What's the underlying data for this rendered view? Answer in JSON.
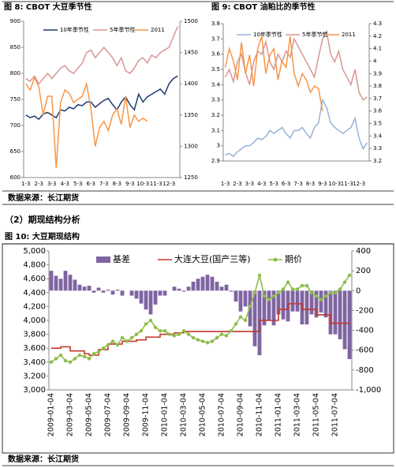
{
  "chart_data": [
    {
      "type": "line",
      "title": "图 8: CBOT 大豆季节性",
      "categories": [
        "1-3",
        null,
        null,
        "2-3",
        null,
        null,
        "3-3",
        null,
        null,
        "4-3",
        null,
        null,
        "5-3",
        null,
        null,
        "6-3",
        null,
        null,
        "7-3",
        null,
        null,
        "8-3",
        null,
        null,
        "9-3",
        null,
        null,
        "10-3",
        null,
        null,
        "11-3",
        null,
        null,
        "12-3",
        null,
        null
      ],
      "ylim": [
        600,
        900
      ],
      "yticks": [
        600,
        650,
        700,
        750,
        800,
        850,
        900
      ],
      "y2lim": [
        1250,
        1500
      ],
      "y2ticks": [
        1250,
        1300,
        1350,
        1400,
        1450,
        1500
      ],
      "series": [
        {
          "name": "10年季节性",
          "color": "#1f3a6e",
          "values": [
            720,
            715,
            718,
            712,
            722,
            725,
            720,
            715,
            730,
            728,
            735,
            732,
            740,
            738,
            745,
            745,
            735,
            742,
            748,
            752,
            740,
            730,
            745,
            755,
            740,
            730,
            760,
            745,
            755,
            760,
            765,
            770,
            760,
            780,
            790,
            795
          ]
        },
        {
          "name": "5年季节性",
          "color": "#d99694",
          "values": [
            790,
            785,
            795,
            780,
            790,
            800,
            790,
            800,
            810,
            815,
            805,
            800,
            810,
            820,
            840,
            845,
            830,
            840,
            850,
            840,
            830,
            815,
            830,
            805,
            800,
            810,
            825,
            830,
            820,
            835,
            830,
            840,
            845,
            850,
            870,
            890
          ]
        },
        {
          "name": "2011",
          "color": "#f79646",
          "axis": "y2",
          "values": [
            1400,
            1390,
            1410,
            1395,
            1350,
            1380,
            1380,
            1265,
            1370,
            1390,
            1385,
            1370,
            1375,
            1380,
            1400,
            1360,
            1300,
            1330,
            1340,
            1325,
            1350,
            1360,
            1335,
            1380,
            1330,
            1350,
            1340,
            1345,
            1340,
            null,
            null,
            null,
            null,
            null,
            null,
            null
          ]
        }
      ]
    },
    {
      "type": "line",
      "title": "图 9: CBOT 油粕比的季节性",
      "categories": [
        "1-3",
        null,
        null,
        "2-3",
        null,
        null,
        "3-3",
        null,
        null,
        "4-3",
        null,
        null,
        "5-3",
        null,
        null,
        "6-3",
        null,
        null,
        "7-3",
        null,
        null,
        "8-3",
        null,
        null,
        "9-3",
        null,
        null,
        "10-3",
        null,
        null,
        "11-3",
        null,
        null,
        "12-3",
        null,
        null
      ],
      "ylim": [
        2.9,
        3.8
      ],
      "yticks": [
        2.9,
        3,
        3.1,
        3.2,
        3.3,
        3.4,
        3.5,
        3.6,
        3.7,
        3.8
      ],
      "y2lim": [
        3.2,
        4.3
      ],
      "y2ticks": [
        3.2,
        3.3,
        3.4,
        3.5,
        3.6,
        3.7,
        3.8,
        3.9,
        4,
        4.1,
        4.2,
        4.3
      ],
      "series": [
        {
          "name": "10年季节性",
          "color": "#95b3d7",
          "values": [
            2.94,
            2.95,
            2.93,
            2.96,
            2.98,
            3.0,
            3.0,
            3.02,
            3.05,
            3.04,
            3.06,
            3.1,
            3.08,
            3.1,
            3.12,
            3.08,
            3.05,
            3.1,
            3.1,
            3.12,
            3.08,
            3.05,
            3.12,
            3.15,
            3.3,
            3.25,
            3.15,
            3.12,
            3.1,
            3.08,
            3.1,
            3.12,
            3.18,
            3.05,
            2.98,
            3.02
          ]
        },
        {
          "name": "5年季节性",
          "color": "#d99694",
          "values": [
            3.45,
            3.5,
            3.42,
            3.55,
            3.6,
            3.48,
            3.4,
            3.55,
            3.62,
            3.6,
            3.68,
            3.55,
            3.5,
            3.6,
            3.55,
            3.62,
            3.58,
            3.7,
            3.65,
            3.6,
            3.55,
            3.5,
            3.45,
            3.58,
            3.7,
            3.75,
            3.6,
            3.55,
            3.62,
            3.5,
            3.45,
            3.4,
            3.5,
            3.35,
            3.3,
            3.32
          ]
        },
        {
          "name": "2011",
          "color": "#f79646",
          "axis": "y2",
          "values": [
            3.95,
            4.1,
            4.0,
            3.85,
            4.15,
            3.9,
            4.05,
            3.8,
            4.1,
            4.2,
            3.9,
            4.05,
            4.1,
            3.85,
            4.0,
            3.95,
            4.2,
            3.9,
            3.8,
            3.9,
            3.85,
            3.75,
            3.8,
            3.78,
            3.6,
            null,
            null,
            null,
            null,
            null,
            null,
            null,
            null,
            null,
            null,
            null
          ]
        }
      ]
    },
    {
      "type": "combo",
      "title": "图 10:  大豆期现结构",
      "categories": [
        "2009-01-04",
        null,
        null,
        null,
        "2009-03-04",
        null,
        null,
        null,
        "2009-05-04",
        null,
        null,
        null,
        "2009-07-04",
        null,
        null,
        null,
        "2009-09-04",
        null,
        null,
        null,
        "2009-11-04",
        null,
        null,
        null,
        "2010-01-04",
        null,
        null,
        null,
        "2010-03-04",
        null,
        null,
        null,
        "2010-05-04",
        null,
        null,
        null,
        "2010-07-04",
        null,
        null,
        null,
        "2010-09-04",
        null,
        null,
        null,
        "2010-11-04",
        null,
        null,
        null,
        "2011-01-04",
        null,
        null,
        null,
        "2011-03-04",
        null,
        null,
        null,
        "2011-05-04",
        null,
        null,
        null,
        "2011-07-04",
        null,
        null,
        null
      ],
      "ylim": [
        3000,
        5000
      ],
      "yticks": [
        {
          "value": 3000,
          "label": "3,000"
        },
        {
          "value": 3200,
          "label": "3,200"
        },
        {
          "value": 3400,
          "label": "3,400"
        },
        {
          "value": 3600,
          "label": "3,600"
        },
        {
          "value": 3800,
          "label": "3,800"
        },
        {
          "value": 4000,
          "label": "4,000"
        },
        {
          "value": 4200,
          "label": "4,200"
        },
        {
          "value": 4400,
          "label": "4,400"
        },
        {
          "value": 4600,
          "label": "4,600"
        },
        {
          "value": 4800,
          "label": "4,800"
        },
        {
          "value": 5000,
          "label": "5,000"
        }
      ],
      "y2lim": [
        -1000,
        400
      ],
      "y2ticks": [
        {
          "value": -1000,
          "label": "-1,000"
        },
        -800,
        -600,
        -400,
        -200,
        0,
        200,
        400
      ],
      "series": [
        {
          "name": "基差",
          "type": "bar",
          "axis": "y2",
          "color": "#8064a2",
          "values": [
            200,
            150,
            120,
            200,
            160,
            110,
            60,
            40,
            50,
            -20,
            30,
            -20,
            10,
            -40,
            10,
            -50,
            0,
            -50,
            -80,
            -130,
            -190,
            -240,
            -140,
            -50,
            -50,
            0,
            40,
            20,
            -10,
            40,
            90,
            120,
            140,
            160,
            140,
            90,
            40,
            60,
            -10,
            -110,
            -210,
            -160,
            -360,
            -560,
            -650,
            -350,
            -300,
            -350,
            -240,
            -290,
            -310,
            -210,
            -210,
            -340,
            -340,
            -240,
            -270,
            -220,
            -270,
            -440,
            -440,
            -490,
            -590,
            -690
          ]
        },
        {
          "name": "大连大豆(国产三等)",
          "type": "line",
          "step": true,
          "color": "#c0392b",
          "values": [
            3600,
            3600,
            3620,
            3620,
            3560,
            3560,
            3560,
            3520,
            3500,
            3500,
            3580,
            3580,
            3660,
            3660,
            3660,
            3700,
            3700,
            3700,
            3720,
            3720,
            3760,
            3760,
            3760,
            3800,
            3800,
            3800,
            3820,
            3820,
            3840,
            3840,
            3840,
            3840,
            3840,
            3840,
            3840,
            3840,
            3840,
            3840,
            3840,
            3840,
            3840,
            3840,
            3840,
            3840,
            4000,
            4000,
            4000,
            4000,
            4160,
            4160,
            4240,
            4240,
            4240,
            4160,
            4160,
            4160,
            4080,
            4080,
            4080,
            3960,
            3960,
            3960,
            3960,
            3960
          ]
        },
        {
          "name": "期价",
          "type": "line",
          "marker": true,
          "color": "#8fbc4a",
          "values": [
            3400,
            3450,
            3500,
            3420,
            3400,
            3450,
            3500,
            3480,
            3450,
            3520,
            3550,
            3600,
            3650,
            3700,
            3650,
            3750,
            3700,
            3750,
            3800,
            3850,
            3950,
            4000,
            3900,
            3850,
            3850,
            3800,
            3780,
            3800,
            3850,
            3800,
            3750,
            3720,
            3700,
            3680,
            3700,
            3750,
            3800,
            3780,
            3850,
            3950,
            4050,
            4000,
            4200,
            4400,
            4650,
            4350,
            4300,
            4350,
            4400,
            4450,
            4550,
            4450,
            4450,
            4500,
            4500,
            4400,
            4350,
            4300,
            4350,
            4400,
            4400,
            4450,
            4550,
            4650
          ]
        }
      ]
    }
  ],
  "document": {
    "sources": [
      "数据来源：长江期货",
      "数据来源：长江期货"
    ],
    "section_heading": "（2）期现结构分析"
  }
}
